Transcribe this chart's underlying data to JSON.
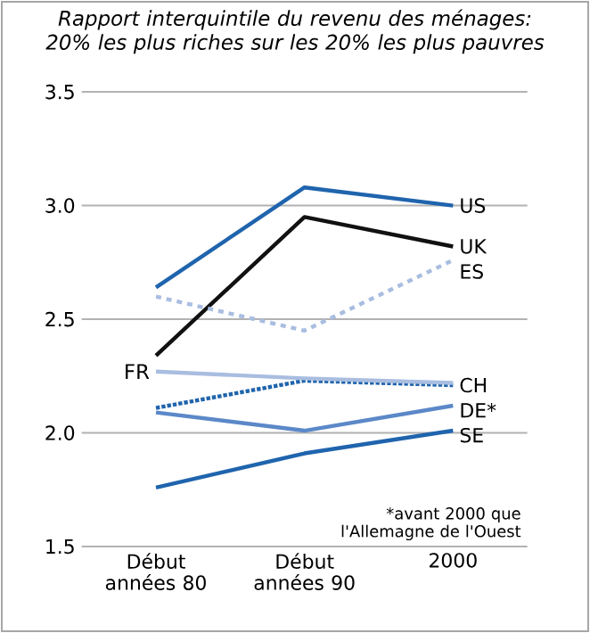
{
  "chart_data": {
    "type": "line",
    "title": "Rapport interquintile du revenu des ménages: 20% les plus riches sur les 20% les plus pauvres",
    "categories": [
      "Début années 80",
      "Début années 90",
      "2000"
    ],
    "series": [
      {
        "name": "US",
        "color": "#1f64ad",
        "values": [
          2.64,
          3.08,
          3.0
        ]
      },
      {
        "name": "UK",
        "color": "#111111",
        "values": [
          2.34,
          2.95,
          2.82
        ]
      },
      {
        "name": "ES",
        "color": "#a9bde0",
        "values": [
          2.6,
          2.45,
          2.76
        ],
        "line_style": "dashed"
      },
      {
        "name": "CH",
        "color": "#1f64ad",
        "values": [
          2.11,
          2.23,
          2.21
        ],
        "line_style": "dotted"
      },
      {
        "name": "DE*",
        "color": "#5b88c8",
        "values": [
          2.09,
          2.01,
          2.12
        ]
      },
      {
        "name": "FR",
        "color": "#a9bde0",
        "values": [
          2.27,
          2.24,
          2.22
        ]
      },
      {
        "name": "SE",
        "color": "#1f64ad",
        "values": [
          1.76,
          1.91,
          2.01
        ]
      }
    ],
    "ylim": [
      1.5,
      3.5
    ],
    "yticks": [
      1.5,
      {
        "value": 2,
        "label": "2.0"
      },
      2.5,
      {
        "value": 3,
        "label": "3.0"
      },
      3.5
    ],
    "grid": "y",
    "line_style": "solid",
    "annotations": [
      "*avant 2000 que l'Allemagne de l'Ouest"
    ]
  }
}
